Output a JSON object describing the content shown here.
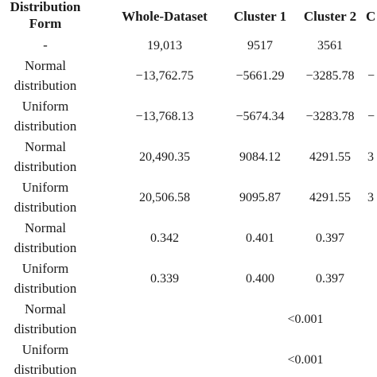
{
  "table": {
    "headers": {
      "form_line1": "Distribution",
      "form_line2": "Form",
      "whole": "Whole-Dataset",
      "c1": "Cluster 1",
      "c2": "Cluster 2",
      "c3": "C"
    },
    "rows": [
      {
        "form_line1": "-",
        "form_line2": "",
        "whole": "19,013",
        "c1": "9517",
        "c2": "3561",
        "c3": ""
      },
      {
        "form_line1": "Normal",
        "form_line2": "distribution",
        "whole": "−13,762.75",
        "c1": "−5661.29",
        "c2": "−3285.78",
        "c3": "−"
      },
      {
        "form_line1": "Uniform",
        "form_line2": "distribution",
        "whole": "−13,768.13",
        "c1": "−5674.34",
        "c2": "−3283.78",
        "c3": "−"
      },
      {
        "form_line1": "Normal",
        "form_line2": "distribution",
        "whole": "20,490.35",
        "c1": "9084.12",
        "c2": "4291.55",
        "c3": "3"
      },
      {
        "form_line1": "Uniform",
        "form_line2": "distribution",
        "whole": "20,506.58",
        "c1": "9095.87",
        "c2": "4291.55",
        "c3": "3"
      },
      {
        "form_line1": "Normal",
        "form_line2": "distribution",
        "whole": "0.342",
        "c1": "0.401",
        "c2": "0.397",
        "c3": ""
      },
      {
        "form_line1": "Uniform",
        "form_line2": "distribution",
        "whole": "0.339",
        "c1": "0.400",
        "c2": "0.397",
        "c3": ""
      },
      {
        "form_line1": "Normal",
        "form_line2": "distribution",
        "merged": "<0.001"
      },
      {
        "form_line1": "Uniform",
        "form_line2": "distribution",
        "merged": "<0.001"
      }
    ]
  }
}
